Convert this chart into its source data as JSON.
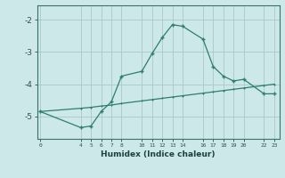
{
  "xlabel": "Humidex (Indice chaleur)",
  "bg_color": "#cce8e8",
  "line_color": "#2e7d6e",
  "grid_color": "#aac8c8",
  "line1_x": [
    0,
    4,
    5,
    6,
    7,
    8,
    10,
    11,
    12,
    13,
    14,
    16,
    17,
    18,
    19,
    20,
    22,
    23
  ],
  "line1_y": [
    -4.85,
    -5.35,
    -5.3,
    -4.85,
    -4.55,
    -3.75,
    -3.6,
    -3.05,
    -2.55,
    -2.15,
    -2.2,
    -2.6,
    -3.45,
    -3.75,
    -3.9,
    -3.85,
    -4.3,
    -4.3
  ],
  "line2_x": [
    0,
    4,
    5,
    6,
    7,
    8,
    10,
    11,
    12,
    13,
    14,
    16,
    17,
    18,
    19,
    20,
    22,
    23
  ],
  "line2_y": [
    -4.85,
    -4.75,
    -4.72,
    -4.68,
    -4.65,
    -4.6,
    -4.52,
    -4.48,
    -4.44,
    -4.4,
    -4.36,
    -4.28,
    -4.24,
    -4.2,
    -4.16,
    -4.12,
    -4.04,
    -4.0
  ],
  "xticks": [
    0,
    4,
    5,
    6,
    7,
    8,
    10,
    11,
    12,
    13,
    14,
    16,
    17,
    18,
    19,
    20,
    22,
    23
  ],
  "yticks": [
    -5,
    -4,
    -3,
    -2
  ],
  "ylim": [
    -5.7,
    -1.55
  ],
  "xlim": [
    -0.3,
    23.5
  ]
}
